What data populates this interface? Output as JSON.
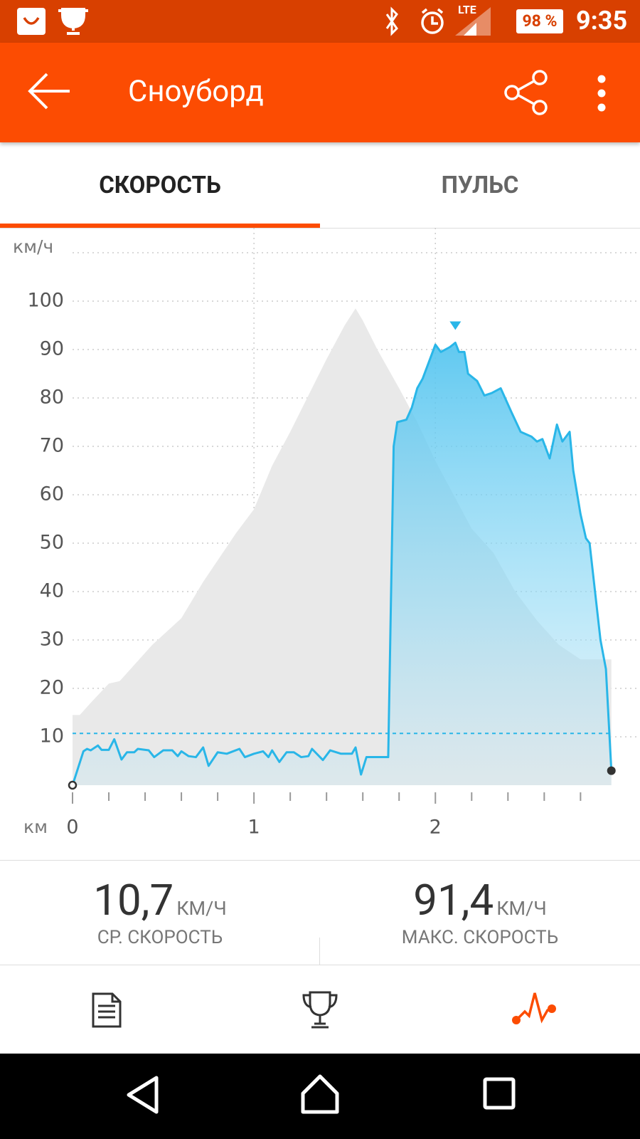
{
  "status_bar": {
    "network": "LTE",
    "battery": "98 %",
    "time": "9:35"
  },
  "toolbar": {
    "title": "Сноуборд"
  },
  "tabs": [
    "СКОРОСТЬ",
    "ПУЛЬС"
  ],
  "chart_data": {
    "type": "area",
    "ylabel": "км/ч",
    "xlabel": "км",
    "xlim": [
      0,
      3.12
    ],
    "ylim": [
      0,
      110
    ],
    "xticks": [
      0,
      1,
      2
    ],
    "xminorticks": [
      0.2,
      0.4,
      0.6,
      0.8,
      1.2,
      1.4,
      1.6,
      1.8,
      2.2,
      2.4,
      2.6,
      2.8
    ],
    "yticks": [
      10,
      20,
      30,
      40,
      50,
      60,
      70,
      80,
      90,
      100
    ],
    "grid": true,
    "average_line": 10.7,
    "max_marker": {
      "x": 2.11,
      "value": 91.4
    },
    "series": [
      {
        "color": "#e9e9e9",
        "x": [
          0,
          0.04,
          0.1,
          0.2,
          0.26,
          0.32,
          0.44,
          0.6,
          0.72,
          0.9,
          1.0,
          1.1,
          1.2,
          1.32,
          1.4,
          1.5,
          1.56,
          1.6,
          1.68,
          1.8,
          1.9,
          2.0,
          2.1,
          2.2,
          2.32,
          2.44,
          2.56,
          2.68,
          2.8,
          2.86,
          2.97
        ],
        "values": [
          14.5,
          14.5,
          17,
          21,
          21.5,
          24,
          29,
          34.5,
          42,
          52,
          57,
          66,
          73,
          82,
          88,
          95,
          98.5,
          96,
          90,
          82,
          75,
          67,
          60,
          53,
          48,
          40,
          34,
          29,
          26,
          26,
          26
        ]
      },
      {
        "color": "#29b6e8",
        "x": [
          0,
          0.06,
          0.08,
          0.1,
          0.14,
          0.16,
          0.2,
          0.23,
          0.27,
          0.3,
          0.34,
          0.36,
          0.42,
          0.45,
          0.5,
          0.55,
          0.58,
          0.6,
          0.64,
          0.68,
          0.72,
          0.75,
          0.8,
          0.85,
          0.92,
          0.95,
          1.0,
          1.05,
          1.08,
          1.1,
          1.14,
          1.18,
          1.22,
          1.26,
          1.3,
          1.32,
          1.38,
          1.42,
          1.48,
          1.54,
          1.56,
          1.59,
          1.62,
          1.74,
          1.77,
          1.79,
          1.84,
          1.87,
          1.9,
          1.93,
          2.0,
          2.03,
          2.08,
          2.11,
          2.13,
          2.16,
          2.18,
          2.23,
          2.27,
          2.31,
          2.36,
          2.42,
          2.47,
          2.53,
          2.56,
          2.59,
          2.63,
          2.67,
          2.7,
          2.74,
          2.76,
          2.8,
          2.83,
          2.85,
          2.88,
          2.91,
          2.94,
          2.97
        ],
        "values": [
          0,
          7,
          7.5,
          7.2,
          8.2,
          7.3,
          7.3,
          9.5,
          5.3,
          6.8,
          6.8,
          7.5,
          7.2,
          5.8,
          7.2,
          7.2,
          6,
          7,
          6,
          5.8,
          7.8,
          4,
          6.8,
          6.5,
          7.5,
          5.8,
          6.5,
          7,
          5.8,
          7.2,
          4.8,
          6.8,
          6.8,
          5.8,
          6,
          7.5,
          5.2,
          7.2,
          6.5,
          6.5,
          7.8,
          2.2,
          5.8,
          5.8,
          70,
          75,
          75.5,
          78,
          82,
          84,
          91,
          89.5,
          90.5,
          91.4,
          89.5,
          89.5,
          85,
          83.5,
          80.5,
          81,
          82,
          77,
          73,
          72,
          71,
          71.5,
          67.5,
          74.5,
          71,
          73,
          65,
          56,
          51,
          50,
          40,
          30,
          24,
          3
        ]
      }
    ]
  },
  "stats": [
    {
      "value": "10,7",
      "unit": "КМ/Ч",
      "label": "СР. СКОРОСТЬ"
    },
    {
      "value": "91,4",
      "unit": "КМ/Ч",
      "label": "МАКС. СКОРОСТЬ"
    }
  ]
}
